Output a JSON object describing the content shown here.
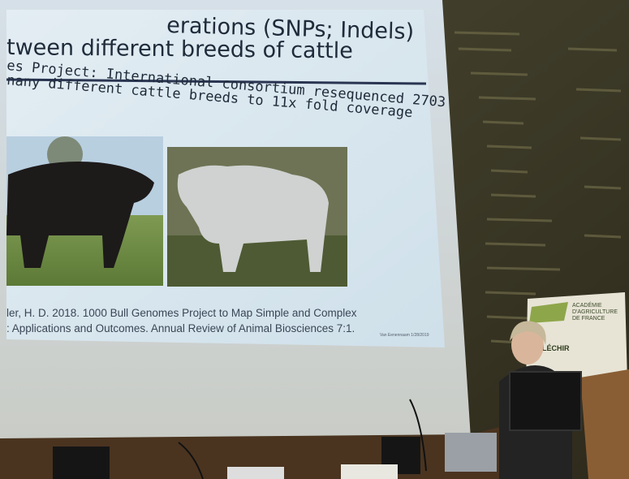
{
  "slide": {
    "title_line1": "erations (SNPs; Indels)",
    "title_line2": "tween different breeds of cattle",
    "body_line1": "es Project: International consortium resequenced 2703",
    "body_line2": "nany different cattle breeds to 11x fold coverage",
    "citation_line1": "ler, H. D. 2018. 1000 Bull Genomes Project to Map Simple and Complex",
    "citation_line2": ": Applications and Outcomes. Annual Review of Animal Biosciences 7:1.",
    "footer": "Van Eenennaam 1/28/2019"
  },
  "banner": {
    "name_line1": "ACADÉMIE",
    "name_line2": "D'AGRICULTURE",
    "name_line3": "DE FRANCE",
    "tagline": "RÉFLÉCHIR"
  }
}
